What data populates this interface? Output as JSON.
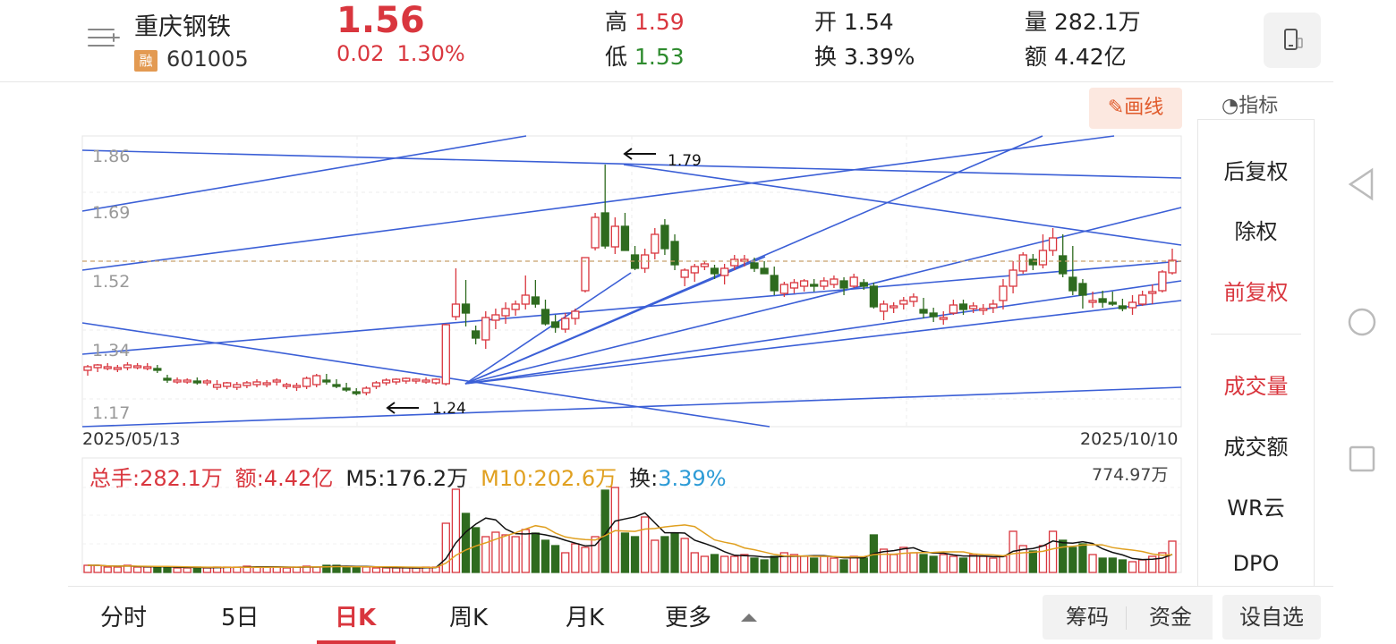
{
  "header": {
    "stock_name": "重庆钢铁",
    "badge": "融",
    "stock_code": "601005",
    "price": "1.56",
    "change": "0.02",
    "change_pct": "1.30%",
    "high_label": "高",
    "high": "1.59",
    "low_label": "低",
    "low": "1.53",
    "open_label": "开",
    "open": "1.54",
    "turnover_label": "换",
    "turnover": "3.39%",
    "volume_label": "量",
    "volume": "282.1万",
    "amount_label": "额",
    "amount": "4.42亿"
  },
  "toolbar": {
    "draw_label": "画线",
    "indicator_label": "指标"
  },
  "chart": {
    "price_ticks": [
      "1.86",
      "1.69",
      "1.52",
      "1.34",
      "1.17"
    ],
    "start_date": "2025/05/13",
    "end_date": "2025/10/10",
    "high_marker": "1.79",
    "low_marker": "1.24"
  },
  "volume": {
    "total_label": "总手:282.1万",
    "amount_label": "额:4.42亿",
    "m5_label": "M5:176.2万",
    "m10_label": "M10:202.6万",
    "turnover_prefix": "换:",
    "turnover_value": "3.39%",
    "max_label": "774.97万"
  },
  "right_panel": {
    "items": [
      "后复权",
      "除权",
      "前复权",
      "成交量",
      "成交额",
      "WR云",
      "DPO"
    ]
  },
  "tabs": [
    "分时",
    "5日",
    "日K",
    "周K",
    "月K",
    "更多"
  ],
  "actions": {
    "chips": "筹码",
    "funds": "资金",
    "watchlist": "设自选"
  },
  "colors": {
    "up": "#d9363e",
    "down": "#2e6b1f",
    "trend_line": "#3b5fd6",
    "accent": "#d9363e"
  }
}
